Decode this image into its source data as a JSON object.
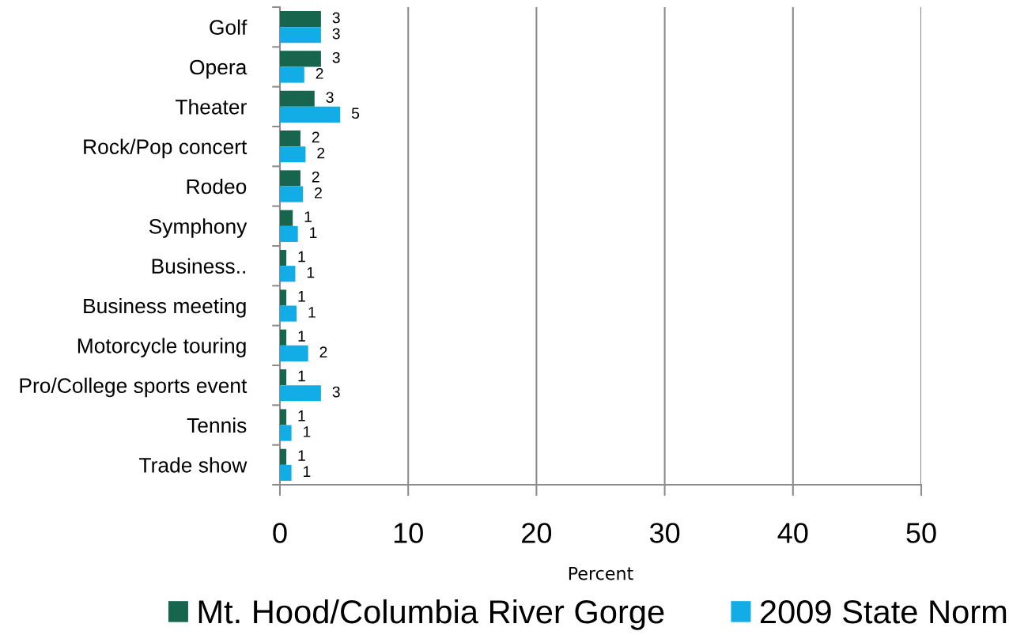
{
  "chart_data": {
    "type": "bar",
    "orientation": "horizontal",
    "categories": [
      "Golf",
      "Opera",
      "Theater",
      "Rock/Pop concert",
      "Rodeo",
      "Symphony",
      "Business..",
      "Business meeting",
      "Motorcycle touring",
      "Pro/College sports event",
      "Tennis",
      "Trade show"
    ],
    "series": [
      {
        "name": "Mt. Hood/Columbia River Gorge",
        "color": "#17654c",
        "values": [
          3.2,
          3.2,
          2.7,
          1.6,
          1.6,
          1.0,
          0.5,
          0.5,
          0.5,
          0.5,
          0.5,
          0.5
        ],
        "value_labels": [
          "3",
          "3",
          "3",
          "2",
          "2",
          "1",
          "1",
          "1",
          "1",
          "1",
          "1",
          "1"
        ]
      },
      {
        "name": "2009 State Norm",
        "color": "#12ade6",
        "values": [
          3.2,
          1.9,
          4.7,
          2.0,
          1.8,
          1.4,
          1.2,
          1.3,
          2.2,
          3.2,
          0.9,
          0.9
        ],
        "value_labels": [
          "3",
          "2",
          "5",
          "2",
          "2",
          "1",
          "1",
          "1",
          "2",
          "3",
          "1",
          "1"
        ]
      }
    ],
    "xlabel": "Percent",
    "xlim": [
      0,
      50
    ],
    "xticks": [
      0,
      10,
      20,
      30,
      40,
      50
    ],
    "grid": "x",
    "legend": "bottom"
  }
}
